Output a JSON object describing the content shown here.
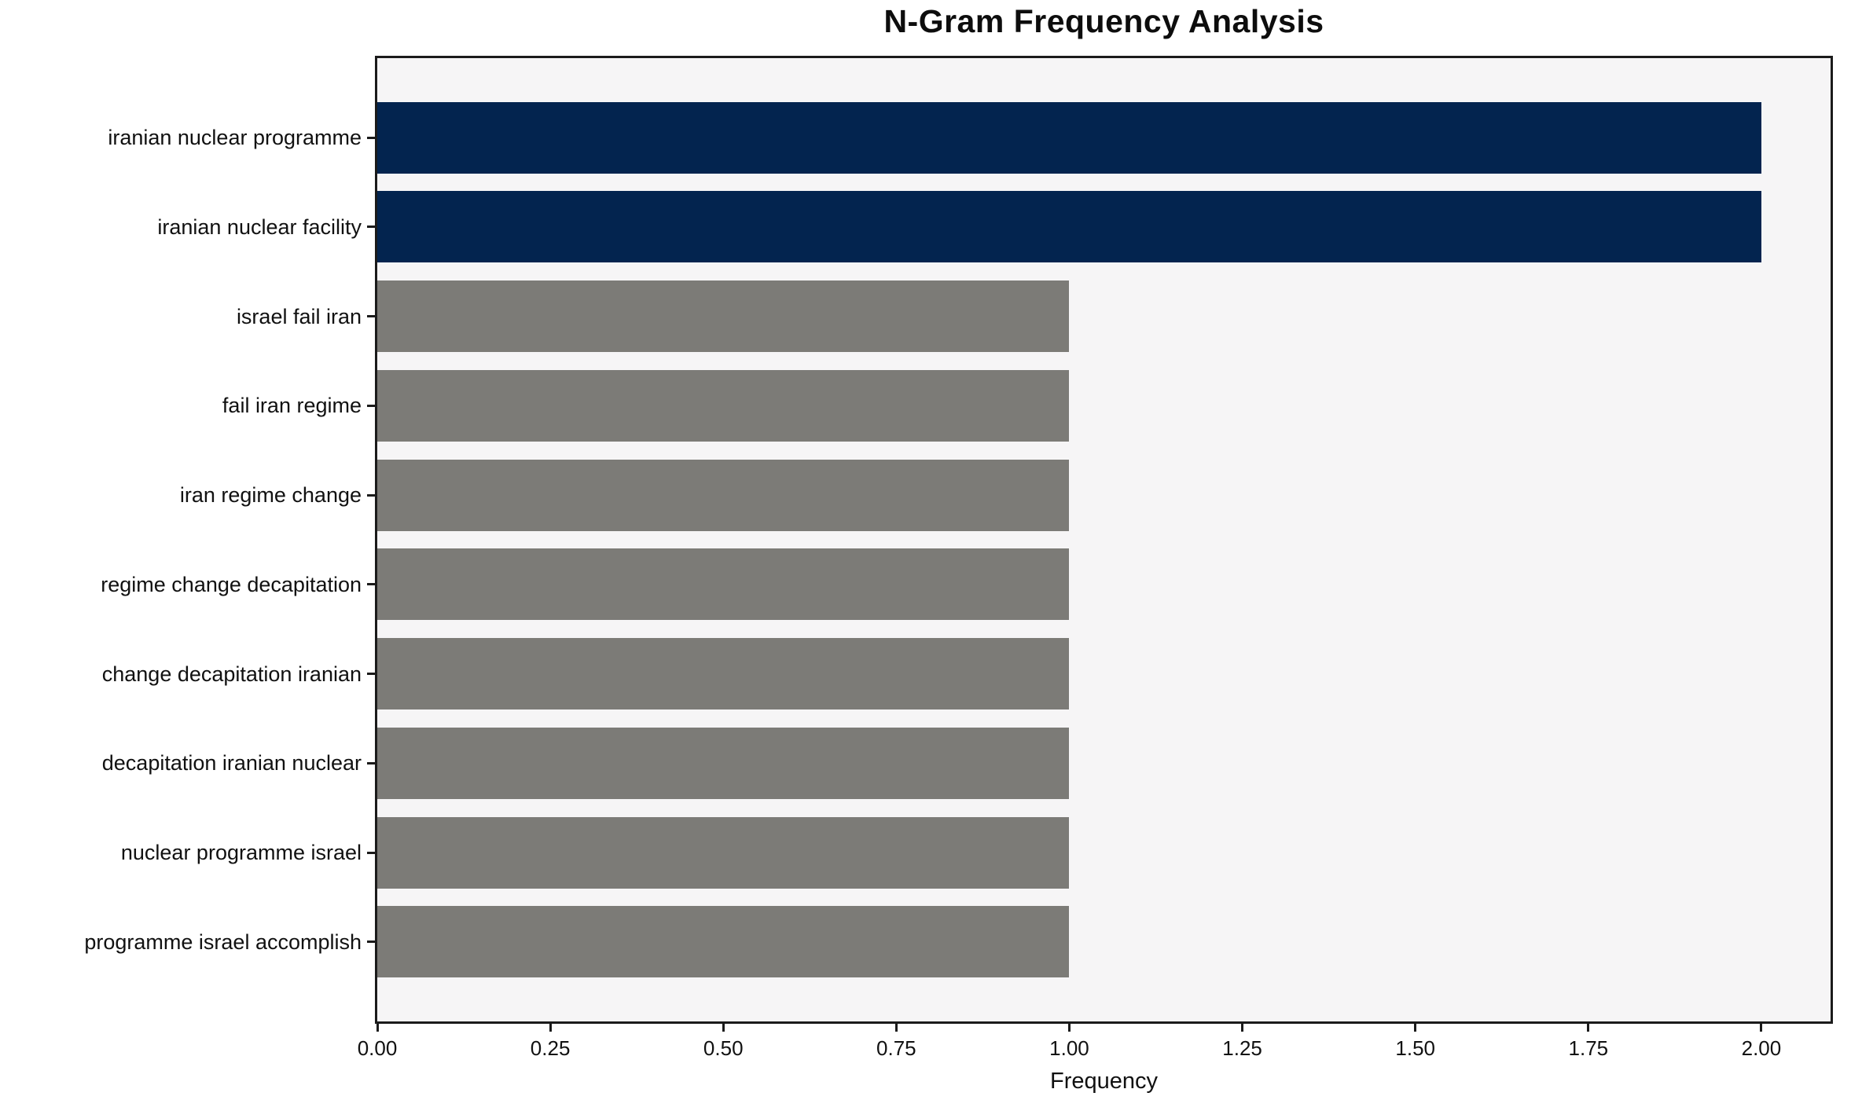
{
  "chart_data": {
    "type": "bar",
    "orientation": "horizontal",
    "title": "N-Gram Frequency Analysis",
    "xlabel": "Frequency",
    "ylabel": "",
    "categories": [
      "iranian nuclear programme",
      "iranian nuclear facility",
      "israel fail iran",
      "fail iran regime",
      "iran regime change",
      "regime change decapitation",
      "change decapitation iranian",
      "decapitation iranian nuclear",
      "nuclear programme israel",
      "programme israel accomplish"
    ],
    "values": [
      2,
      2,
      1,
      1,
      1,
      1,
      1,
      1,
      1,
      1
    ],
    "bar_colors": [
      "#03244f",
      "#03244f",
      "#7c7b77",
      "#7c7b77",
      "#7c7b77",
      "#7c7b77",
      "#7c7b77",
      "#7c7b77",
      "#7c7b77",
      "#7c7b77"
    ],
    "color_legend": {
      "highlight": "#03244f",
      "default": "#7c7b77"
    },
    "xlim": [
      0,
      2.1
    ],
    "x_ticks": [
      "0.00",
      "0.25",
      "0.50",
      "0.75",
      "1.00",
      "1.25",
      "1.50",
      "1.75",
      "2.00"
    ],
    "x_tick_values": [
      0,
      0.25,
      0.5,
      0.75,
      1,
      1.25,
      1.5,
      1.75,
      2
    ],
    "grid": false,
    "legend": "none",
    "plot_background": "#f6f5f6",
    "figure_background": "#ffffff",
    "frame_color": "#1b1b1b"
  }
}
